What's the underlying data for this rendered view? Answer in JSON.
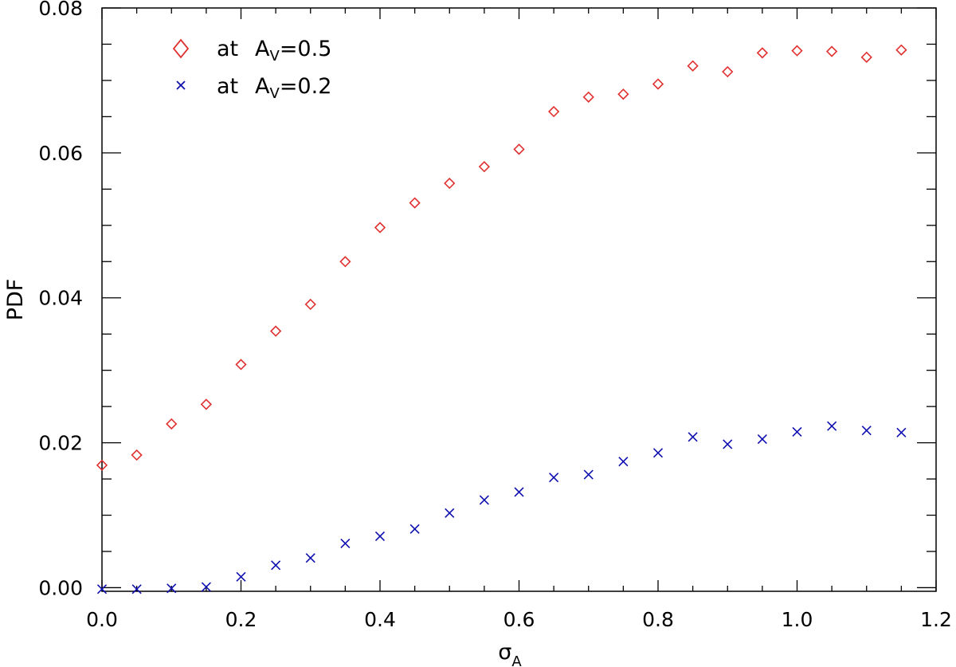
{
  "chart_data": {
    "type": "scatter",
    "xlabel": "σ",
    "xlabel_sub": "A",
    "ylabel": "PDF",
    "xlim": [
      0.0,
      1.2
    ],
    "ylim": [
      -0.0005,
      0.08
    ],
    "x_ticks": [
      0.0,
      0.2,
      0.4,
      0.6,
      0.8,
      1.0,
      1.2
    ],
    "x_tick_labels": [
      "0.0",
      "0.2",
      "0.4",
      "0.6",
      "0.8",
      "1.0",
      "1.2"
    ],
    "x_minor_step": 0.05,
    "y_ticks": [
      0.0,
      0.02,
      0.04,
      0.06,
      0.08
    ],
    "y_tick_labels": [
      "0.00",
      "0.02",
      "0.04",
      "0.06",
      "0.08"
    ],
    "y_minor_step": 0.005,
    "grid": false,
    "legend_position": "top-left",
    "x": [
      0.0,
      0.05,
      0.1,
      0.15,
      0.2,
      0.25,
      0.3,
      0.35,
      0.4,
      0.45,
      0.5,
      0.55,
      0.6,
      0.65,
      0.7,
      0.75,
      0.8,
      0.85,
      0.9,
      0.95,
      1.0,
      1.05,
      1.1,
      1.15
    ],
    "series": [
      {
        "legend_prefix": "at",
        "legend_main": "A",
        "legend_sub": "V",
        "legend_suffix": "=0.5",
        "marker": "diamond",
        "color": "#e03030",
        "values": [
          0.0169,
          0.0183,
          0.0226,
          0.0253,
          0.0308,
          0.0354,
          0.0391,
          0.045,
          0.0497,
          0.0531,
          0.0558,
          0.0581,
          0.0605,
          0.0657,
          0.0677,
          0.0681,
          0.0695,
          0.072,
          0.0712,
          0.0738,
          0.0741,
          0.074,
          0.0732,
          0.0742
        ]
      },
      {
        "legend_prefix": "at",
        "legend_main": "A",
        "legend_sub": "V",
        "legend_suffix": "=0.2",
        "marker": "x",
        "color": "#1010b0",
        "values": [
          -0.0002,
          -0.0002,
          -0.0001,
          0.0001,
          0.0015,
          0.0031,
          0.0041,
          0.0061,
          0.0071,
          0.0081,
          0.0103,
          0.0121,
          0.0132,
          0.0152,
          0.0156,
          0.0174,
          0.0186,
          0.0208,
          0.0198,
          0.0205,
          0.0215,
          0.0223,
          0.0217,
          0.0214
        ]
      }
    ]
  }
}
